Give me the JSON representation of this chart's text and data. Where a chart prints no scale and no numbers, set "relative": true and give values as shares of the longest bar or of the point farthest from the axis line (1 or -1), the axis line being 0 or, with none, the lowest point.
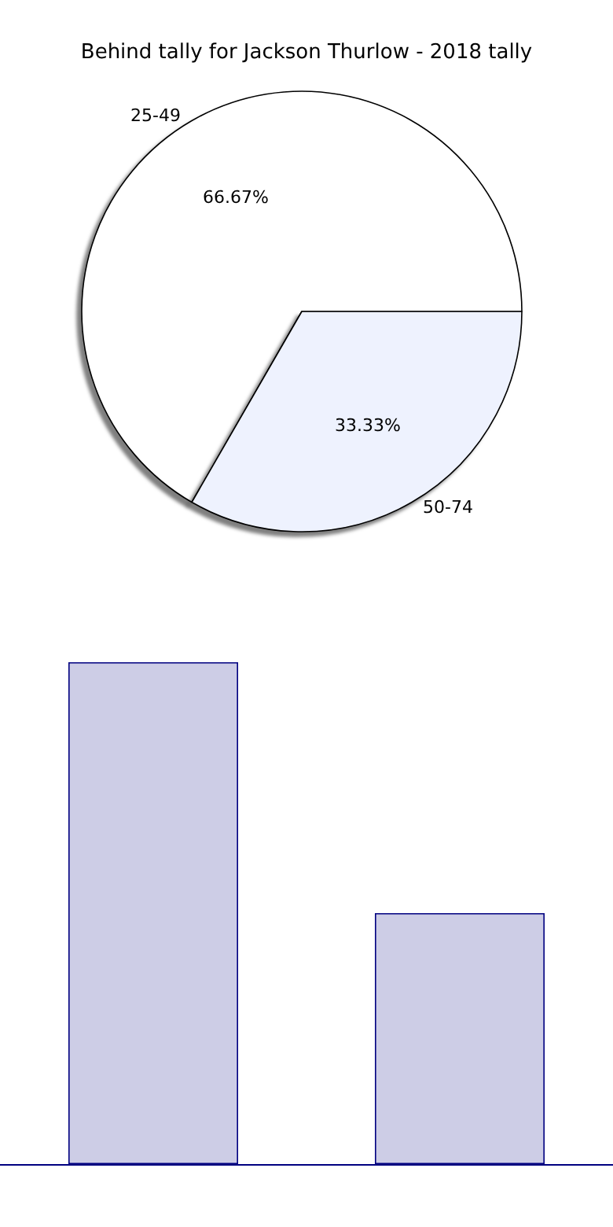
{
  "chart_data": [
    {
      "type": "pie",
      "title": "Behind tally for Jackson Thurlow - 2018 tally",
      "categories": [
        "25-49",
        "50-74"
      ],
      "values": [
        66.67,
        33.33
      ],
      "colors": [
        "#ffffff",
        "#eef2fe"
      ],
      "value_labels": [
        "66.67%",
        "33.33%"
      ],
      "legend": false
    },
    {
      "type": "bar",
      "relative": true,
      "categories": [
        null,
        null
      ],
      "values": [
        1,
        0.5
      ],
      "color": "#cdcde6",
      "legend": false,
      "grid": false
    }
  ]
}
